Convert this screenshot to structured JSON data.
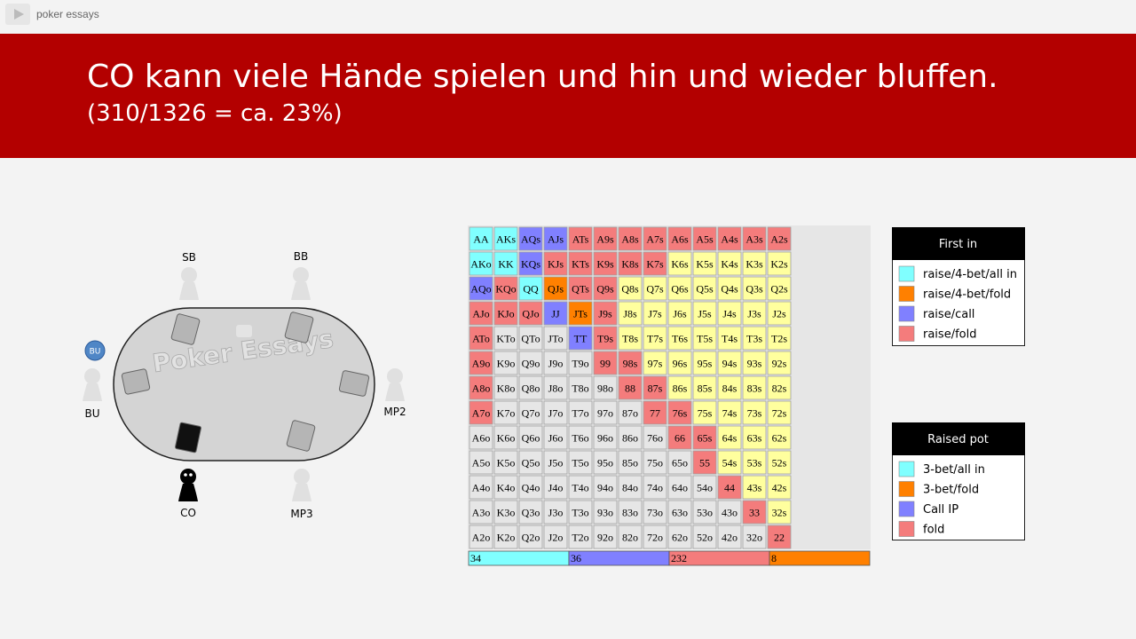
{
  "header": {
    "app_name": "poker essays"
  },
  "slide": {
    "title": "CO kann viele Hände spielen und hin und wieder bluffen.",
    "subtitle": "(310/1326 = ca. 23%)"
  },
  "table": {
    "watermark": "Poker Essays",
    "dealer_button": "BU",
    "seats": [
      "SB",
      "BB",
      "BU",
      "MP2",
      "CO",
      "MP3"
    ]
  },
  "range": {
    "hands": [
      [
        "AA",
        "AKs",
        "AQs",
        "AJs",
        "ATs",
        "A9s",
        "A8s",
        "A7s",
        "A6s",
        "A5s",
        "A4s",
        "A3s",
        "A2s"
      ],
      [
        "AKo",
        "KK",
        "KQs",
        "KJs",
        "KTs",
        "K9s",
        "K8s",
        "K7s",
        "K6s",
        "K5s",
        "K4s",
        "K3s",
        "K2s"
      ],
      [
        "AQo",
        "KQo",
        "QQ",
        "QJs",
        "QTs",
        "Q9s",
        "Q8s",
        "Q7s",
        "Q6s",
        "Q5s",
        "Q4s",
        "Q3s",
        "Q2s"
      ],
      [
        "AJo",
        "KJo",
        "QJo",
        "JJ",
        "JTs",
        "J9s",
        "J8s",
        "J7s",
        "J6s",
        "J5s",
        "J4s",
        "J3s",
        "J2s"
      ],
      [
        "ATo",
        "KTo",
        "QTo",
        "JTo",
        "TT",
        "T9s",
        "T8s",
        "T7s",
        "T6s",
        "T5s",
        "T4s",
        "T3s",
        "T2s"
      ],
      [
        "A9o",
        "K9o",
        "Q9o",
        "J9o",
        "T9o",
        "99",
        "98s",
        "97s",
        "96s",
        "95s",
        "94s",
        "93s",
        "92s"
      ],
      [
        "A8o",
        "K8o",
        "Q8o",
        "J8o",
        "T8o",
        "98o",
        "88",
        "87s",
        "86s",
        "85s",
        "84s",
        "83s",
        "82s"
      ],
      [
        "A7o",
        "K7o",
        "Q7o",
        "J7o",
        "T7o",
        "97o",
        "87o",
        "77",
        "76s",
        "75s",
        "74s",
        "73s",
        "72s"
      ],
      [
        "A6o",
        "K6o",
        "Q6o",
        "J6o",
        "T6o",
        "96o",
        "86o",
        "76o",
        "66",
        "65s",
        "64s",
        "63s",
        "62s"
      ],
      [
        "A5o",
        "K5o",
        "Q5o",
        "J5o",
        "T5o",
        "95o",
        "85o",
        "75o",
        "65o",
        "55",
        "54s",
        "53s",
        "52s"
      ],
      [
        "A4o",
        "K4o",
        "Q4o",
        "J4o",
        "T4o",
        "94o",
        "84o",
        "74o",
        "64o",
        "54o",
        "44",
        "43s",
        "42s"
      ],
      [
        "A3o",
        "K3o",
        "Q3o",
        "J3o",
        "T3o",
        "93o",
        "83o",
        "73o",
        "63o",
        "53o",
        "43o",
        "33",
        "32s"
      ],
      [
        "A2o",
        "K2o",
        "Q2o",
        "J2o",
        "T2o",
        "92o",
        "82o",
        "72o",
        "62o",
        "52o",
        "42o",
        "32o",
        "22"
      ]
    ],
    "colors": [
      [
        "#80ffff",
        "#80ffff",
        "#8080ff",
        "#8080ff",
        "#f47c7c",
        "#f47c7c",
        "#f47c7c",
        "#f47c7c",
        "#f47c7c",
        "#f47c7c",
        "#f47c7c",
        "#f47c7c",
        "#f47c7c"
      ],
      [
        "#80ffff",
        "#80ffff",
        "#8080ff",
        "#f47c7c",
        "#f47c7c",
        "#f47c7c",
        "#f47c7c",
        "#f47c7c",
        "#ffff9e",
        "#ffff9e",
        "#ffff9e",
        "#ffff9e",
        "#ffff9e"
      ],
      [
        "#8080ff",
        "#f47c7c",
        "#80ffff",
        "#ff8000",
        "#f47c7c",
        "#f47c7c",
        "#ffff9e",
        "#ffff9e",
        "#ffff9e",
        "#ffff9e",
        "#ffff9e",
        "#ffff9e",
        "#ffff9e"
      ],
      [
        "#f47c7c",
        "#f47c7c",
        "#f47c7c",
        "#8080ff",
        "#ff8000",
        "#f47c7c",
        "#ffff9e",
        "#ffff9e",
        "#ffff9e",
        "#ffff9e",
        "#ffff9e",
        "#ffff9e",
        "#ffff9e"
      ],
      [
        "#f47c7c",
        "#e6e6e6",
        "#e6e6e6",
        "#e6e6e6",
        "#8080ff",
        "#f47c7c",
        "#ffff9e",
        "#ffff9e",
        "#ffff9e",
        "#ffff9e",
        "#ffff9e",
        "#ffff9e",
        "#ffff9e"
      ],
      [
        "#f47c7c",
        "#e6e6e6",
        "#e6e6e6",
        "#e6e6e6",
        "#e6e6e6",
        "#f47c7c",
        "#f47c7c",
        "#ffff9e",
        "#ffff9e",
        "#ffff9e",
        "#ffff9e",
        "#ffff9e",
        "#ffff9e"
      ],
      [
        "#f47c7c",
        "#e6e6e6",
        "#e6e6e6",
        "#e6e6e6",
        "#e6e6e6",
        "#e6e6e6",
        "#f47c7c",
        "#f47c7c",
        "#ffff9e",
        "#ffff9e",
        "#ffff9e",
        "#ffff9e",
        "#ffff9e"
      ],
      [
        "#f47c7c",
        "#e6e6e6",
        "#e6e6e6",
        "#e6e6e6",
        "#e6e6e6",
        "#e6e6e6",
        "#e6e6e6",
        "#f47c7c",
        "#f47c7c",
        "#ffff9e",
        "#ffff9e",
        "#ffff9e",
        "#ffff9e"
      ],
      [
        "#e6e6e6",
        "#e6e6e6",
        "#e6e6e6",
        "#e6e6e6",
        "#e6e6e6",
        "#e6e6e6",
        "#e6e6e6",
        "#e6e6e6",
        "#f47c7c",
        "#f47c7c",
        "#ffff9e",
        "#ffff9e",
        "#ffff9e"
      ],
      [
        "#e6e6e6",
        "#e6e6e6",
        "#e6e6e6",
        "#e6e6e6",
        "#e6e6e6",
        "#e6e6e6",
        "#e6e6e6",
        "#e6e6e6",
        "#e6e6e6",
        "#f47c7c",
        "#ffff9e",
        "#ffff9e",
        "#ffff9e"
      ],
      [
        "#e6e6e6",
        "#e6e6e6",
        "#e6e6e6",
        "#e6e6e6",
        "#e6e6e6",
        "#e6e6e6",
        "#e6e6e6",
        "#e6e6e6",
        "#e6e6e6",
        "#e6e6e6",
        "#f47c7c",
        "#ffff9e",
        "#ffff9e"
      ],
      [
        "#e6e6e6",
        "#e6e6e6",
        "#e6e6e6",
        "#e6e6e6",
        "#e6e6e6",
        "#e6e6e6",
        "#e6e6e6",
        "#e6e6e6",
        "#e6e6e6",
        "#e6e6e6",
        "#e6e6e6",
        "#f47c7c",
        "#ffff9e"
      ],
      [
        "#e6e6e6",
        "#e6e6e6",
        "#e6e6e6",
        "#e6e6e6",
        "#e6e6e6",
        "#e6e6e6",
        "#e6e6e6",
        "#e6e6e6",
        "#e6e6e6",
        "#e6e6e6",
        "#e6e6e6",
        "#e6e6e6",
        "#f47c7c"
      ]
    ],
    "totals": [
      {
        "value": 34,
        "color": "#80ffff"
      },
      {
        "value": 36,
        "color": "#8080ff"
      },
      {
        "value": 232,
        "color": "#f47c7c"
      },
      {
        "value": 8,
        "color": "#ff8000"
      }
    ]
  },
  "legends": [
    {
      "title": "First in",
      "items": [
        {
          "label": "raise/4-bet/all in",
          "color": "#80ffff"
        },
        {
          "label": "raise/4-bet/fold",
          "color": "#ff8000"
        },
        {
          "label": "raise/call",
          "color": "#8080ff"
        },
        {
          "label": "raise/fold",
          "color": "#f47c7c"
        }
      ]
    },
    {
      "title": "Raised pot",
      "items": [
        {
          "label": "3-bet/all in",
          "color": "#80ffff"
        },
        {
          "label": "3-bet/fold",
          "color": "#ff8000"
        },
        {
          "label": "Call IP",
          "color": "#8080ff"
        },
        {
          "label": "fold",
          "color": "#f47c7c"
        }
      ]
    }
  ]
}
